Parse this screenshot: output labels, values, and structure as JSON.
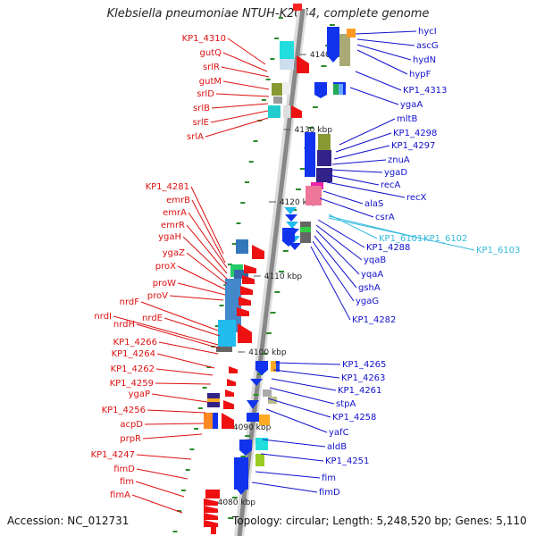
{
  "title": "Klebsiella pneumoniae NTUH-K2044, complete genome",
  "accession": "Accession: NC_012731",
  "summary": "Topology: circular; Length: 5,248,520 bp; Genes: 5,110",
  "colors": {
    "left_labels": "#dd1111",
    "right_labels": "#1111cc",
    "highlight_labels": "#33bbdd",
    "backbone": "#888888",
    "tick": "#2a8a2a"
  },
  "backbone_labels": [
    "4140 kbp",
    "4130 kbp",
    "4120 kbp",
    "4110 kbp",
    "4100 kbp",
    "4090 kbp",
    "4080 kbp"
  ],
  "left_genes": [
    "KP1_4310",
    "gutQ",
    "srlR",
    "gutM",
    "srlD",
    "srlB",
    "srlE",
    "srlA",
    "KP1_4281",
    "emrB",
    "emrA",
    "emrR",
    "ygaH",
    "ygaZ",
    "proX",
    "proW",
    "proV",
    "nrdF",
    "nrdE",
    "nrdI",
    "nrdH",
    "KP1_4266",
    "KP1_4264",
    "KP1_4262",
    "KP1_4259",
    "ygaP",
    "KP1_4256",
    "acpD",
    "prpR",
    "KP1_4247",
    "fimD",
    "fim",
    "fimA"
  ],
  "right_genes": [
    "hycI",
    "ascG",
    "hydN",
    "hypF",
    "KP1_4313",
    "ygaA",
    "mltB",
    "KP1_4298",
    "KP1_4297",
    "znuA",
    "ygaD",
    "recA",
    "recX",
    "alaS",
    "csrA",
    "KP1_4288",
    "yqaB",
    "yqaA",
    "gshA",
    "ygaG",
    "KP1_4282",
    "KP1_4265",
    "KP1_4263",
    "KP1_4261",
    "stpA",
    "KP1_4258",
    "yafC",
    "aldB",
    "KP1_4251",
    "fim",
    "fimD"
  ],
  "highlight_genes": [
    "KP1_6101",
    "KP1_6102",
    "KP1_6103"
  ]
}
